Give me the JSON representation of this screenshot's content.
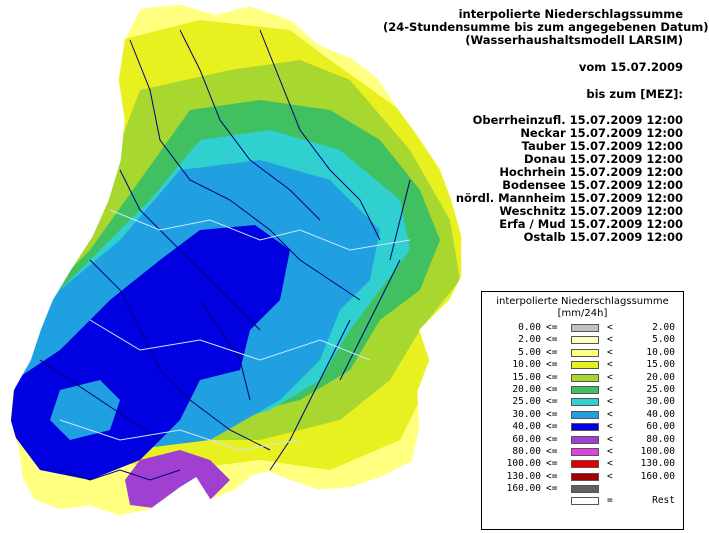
{
  "header": {
    "title": "interpolierte Niederschlagssumme",
    "subtitle": "(24-Stundensumme bis zum angegebenen Datum)",
    "model": "(Wasserhaushaltsmodell LARSIM)",
    "from": "vom 15.07.2009",
    "until_label": "bis zum [MEZ]:",
    "regions": [
      "Oberrheinzufl. 15.07.2009 12:00",
      "Neckar 15.07.2009 12:00",
      "Tauber 15.07.2009 12:00",
      "Donau 15.07.2009 12:00",
      "Hochrhein 15.07.2009 12:00",
      "Bodensee 15.07.2009 12:00",
      "nördl. Mannheim 15.07.2009 12:00",
      "Weschnitz 15.07.2009 12:00",
      "Erfa / Mud 15.07.2009 12:00",
      "Ostalb 15.07.2009 12:00"
    ]
  },
  "legend": {
    "title": "interpolierte Niederschlagssumme",
    "unit": "[mm/24h]",
    "rows": [
      {
        "lo": "0.00",
        "op1": "<=",
        "color": "#c0c0c0",
        "op2": "<",
        "hi": "2.00"
      },
      {
        "lo": "2.00",
        "op1": "<=",
        "color": "#ffffc0",
        "op2": "<",
        "hi": "5.00"
      },
      {
        "lo": "5.00",
        "op1": "<=",
        "color": "#ffff80",
        "op2": "<",
        "hi": "10.00"
      },
      {
        "lo": "10.00",
        "op1": "<=",
        "color": "#e8f020",
        "op2": "<",
        "hi": "15.00"
      },
      {
        "lo": "15.00",
        "op1": "<=",
        "color": "#a8d830",
        "op2": "<",
        "hi": "20.00"
      },
      {
        "lo": "20.00",
        "op1": "<=",
        "color": "#40c060",
        "op2": "<",
        "hi": "25.00"
      },
      {
        "lo": "25.00",
        "op1": "<=",
        "color": "#30d0d0",
        "op2": "<",
        "hi": "30.00"
      },
      {
        "lo": "30.00",
        "op1": "<=",
        "color": "#20a0e0",
        "op2": "<",
        "hi": "40.00"
      },
      {
        "lo": "40.00",
        "op1": "<=",
        "color": "#0000e0",
        "op2": "<",
        "hi": "60.00"
      },
      {
        "lo": "60.00",
        "op1": "<=",
        "color": "#a040d0",
        "op2": "<",
        "hi": "80.00"
      },
      {
        "lo": "80.00",
        "op1": "<=",
        "color": "#e040e0",
        "op2": "<",
        "hi": "100.00"
      },
      {
        "lo": "100.00",
        "op1": "<=",
        "color": "#e00000",
        "op2": "<",
        "hi": "130.00"
      },
      {
        "lo": "130.00",
        "op1": "<=",
        "color": "#a00000",
        "op2": "<",
        "hi": "160.00"
      },
      {
        "lo": "160.00",
        "op1": "<=",
        "color": "#606060",
        "op2": "",
        "hi": ""
      },
      {
        "lo": "",
        "op1": "",
        "color": "#ffffff",
        "op2": "=",
        "hi": "Rest"
      }
    ]
  },
  "colors": {
    "outline": "#ffffff",
    "river": "#00007a"
  }
}
